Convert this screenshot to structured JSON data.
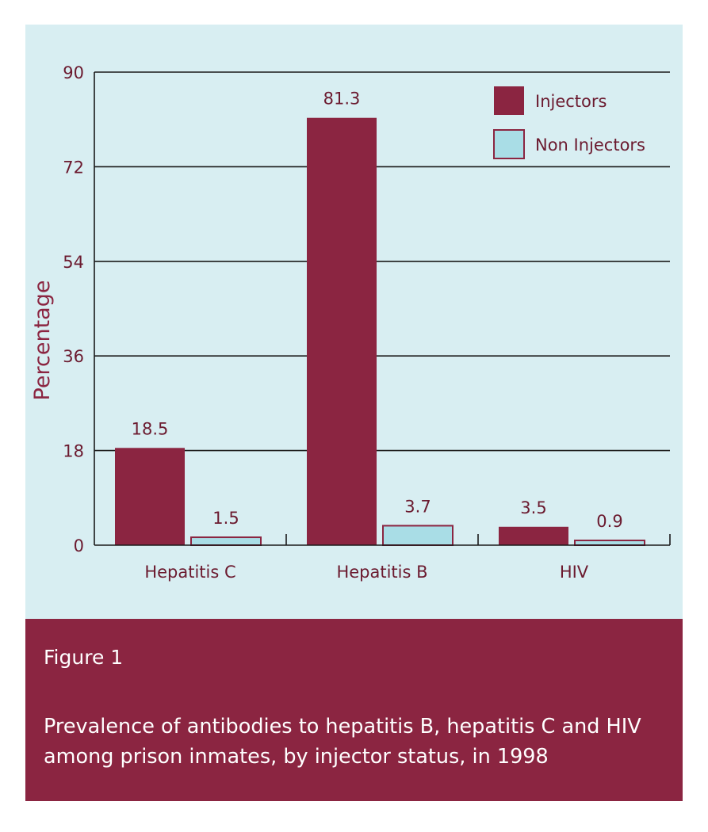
{
  "chart_data": {
    "type": "bar",
    "categories": [
      "Hepatitis C",
      "Hepatitis B",
      "HIV"
    ],
    "series": [
      {
        "name": "Injectors",
        "values": [
          18.5,
          81.3,
          3.5
        ],
        "color": "#8b2541"
      },
      {
        "name": "Non Injectors",
        "values": [
          1.5,
          3.7,
          0.9
        ],
        "color": "#a9dde6"
      }
    ],
    "value_labels": [
      [
        "18.5",
        "81.3",
        "3.5"
      ],
      [
        "1.5",
        "3.7",
        "0.9"
      ]
    ],
    "ylabel": "Percentage",
    "ylim": [
      0,
      90
    ],
    "yticks": [
      0,
      18,
      36,
      54,
      72,
      90
    ],
    "grid": true,
    "legend_position": "top-right"
  },
  "caption": {
    "label": "Figure 1",
    "text": "Prevalence of antibodies to hepatitis B, hepatitis C and HIV among prison inmates, by injector status, in 1998"
  },
  "colors": {
    "plot_background": "#d8eef2",
    "caption_background": "#8b2541",
    "text": "#6b1a2f",
    "outline": "#8b2541"
  }
}
